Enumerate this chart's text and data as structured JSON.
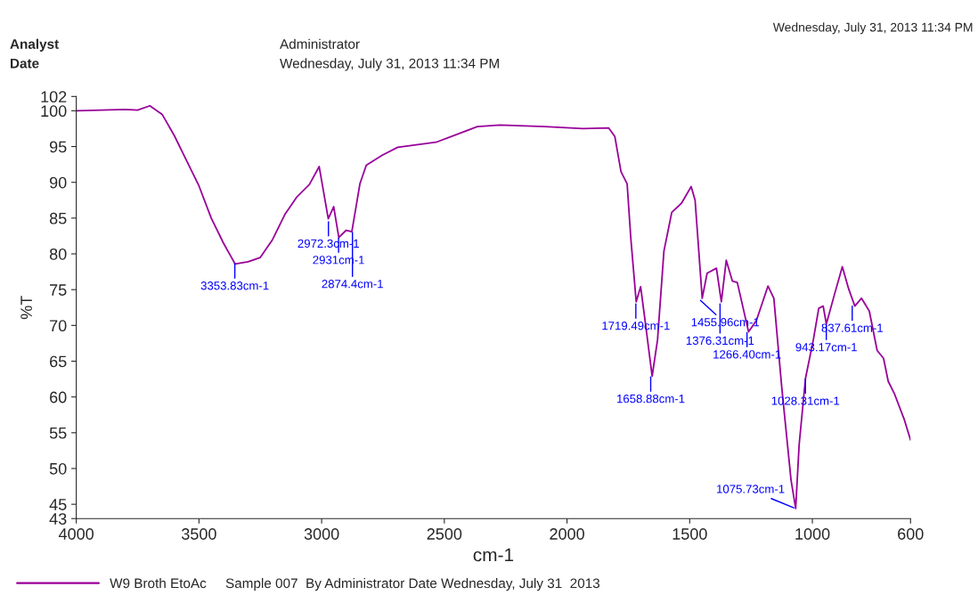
{
  "chart_data": {
    "type": "line",
    "xlabel": "cm-1",
    "ylabel": "%T",
    "xlim": [
      4000,
      600
    ],
    "xticks": [
      4000,
      3500,
      3000,
      2500,
      2000,
      1500,
      1000,
      600
    ],
    "ylim": [
      43,
      102
    ],
    "yticks": [
      43,
      45,
      50,
      55,
      60,
      65,
      70,
      75,
      80,
      85,
      90,
      95,
      100,
      102
    ],
    "grid": false,
    "legend": "bottom",
    "marker": "none",
    "line_style": "solid",
    "series": [
      {
        "name": "W9 Broth EtoAc     Sample 007  By Administrator Date Wednesday, July 31  2013",
        "color": "#990099",
        "x": [
          4000,
          3800,
          3750,
          3700,
          3650,
          3600,
          3550,
          3500,
          3450,
          3400,
          3353,
          3300,
          3250,
          3200,
          3150,
          3100,
          3050,
          3010,
          2973,
          2951,
          2930,
          2900,
          2877,
          2844,
          2818,
          2753,
          2690,
          2534,
          2365,
          2273,
          2091,
          1935,
          1830,
          1805,
          1780,
          1755,
          1740,
          1718,
          1700,
          1682,
          1653,
          1631,
          1605,
          1573,
          1533,
          1494,
          1478,
          1449,
          1429,
          1391,
          1371,
          1351,
          1326,
          1306,
          1260,
          1228,
          1181,
          1157,
          1125,
          1087,
          1068,
          1054,
          1028,
          996,
          974,
          956,
          943,
          911,
          878,
          852,
          827,
          800,
          768,
          736,
          710,
          691,
          665,
          626,
          600
        ],
        "values": [
          100,
          100.2,
          100.1,
          100.7,
          99.5,
          96.5,
          93,
          89.5,
          85,
          81.5,
          78.6,
          78.9,
          79.5,
          82,
          85.5,
          88,
          89.7,
          92.2,
          84.9,
          86.6,
          82.3,
          83.3,
          83.1,
          89.8,
          92.4,
          93.8,
          94.9,
          95.6,
          97.8,
          98,
          97.8,
          97.5,
          97.6,
          96.4,
          91.5,
          89.8,
          82.2,
          73.3,
          75.4,
          70.7,
          62.9,
          68,
          80.4,
          85.8,
          87.1,
          89.4,
          87.5,
          73.8,
          77.3,
          78,
          73.3,
          79.1,
          76.2,
          76,
          69.1,
          70.7,
          75.5,
          73.8,
          61.4,
          48.4,
          44.4,
          53.3,
          62.6,
          68,
          72.4,
          72.7,
          70.2,
          74.2,
          78.2,
          75.1,
          72.7,
          73.8,
          72,
          66.5,
          65.4,
          62.2,
          60.4,
          56.9,
          54
        ]
      }
    ],
    "annotations": [
      "Analyst",
      "Administrator",
      "Date",
      "Wednesday, July 31, 2013 11:34 PM",
      "Wednesday, July 31, 2013 11:34 PM",
      {
        "text": "3353.83cm-1",
        "x": 3353.83,
        "y": 78.6
      },
      {
        "text": "2972.3cm-1",
        "x": 2972.3,
        "y": 84.5
      },
      {
        "text": "2931cm-1",
        "x": 2931,
        "y": 82.2
      },
      {
        "text": "2874.4cm-1",
        "x": 2874.4,
        "y": 83.0
      },
      {
        "text": "1719.49cm-1",
        "x": 1719.49,
        "y": 73.0
      },
      {
        "text": "1658.88cm-1",
        "x": 1658.88,
        "y": 62.8
      },
      {
        "text": "1455.96cm-1",
        "x": 1455.96,
        "y": 73.5
      },
      {
        "text": "1376.31cm-1",
        "x": 1376.31,
        "y": 73.0
      },
      {
        "text": "1266.40cm-1",
        "x": 1266.4,
        "y": 69.0
      },
      {
        "text": "1075.73cm-1",
        "x": 1075.73,
        "y": 44.5
      },
      {
        "text": "1028.31cm-1",
        "x": 1028.31,
        "y": 62.5
      },
      {
        "text": "943.17cm-1",
        "x": 943.17,
        "y": 70.0
      },
      {
        "text": "837.61cm-1",
        "x": 837.61,
        "y": 72.7
      }
    ]
  }
}
